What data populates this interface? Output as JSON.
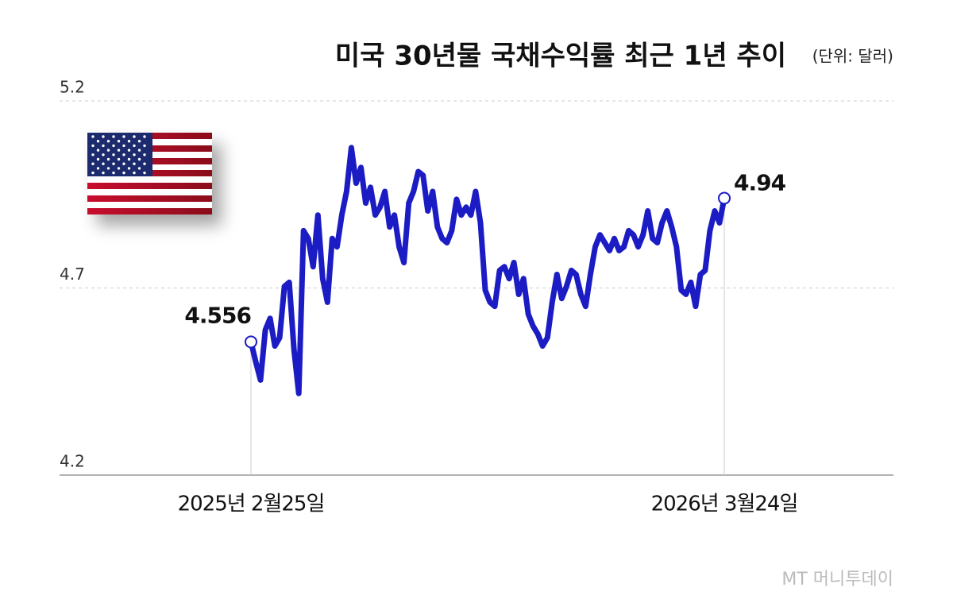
{
  "chart_data": {
    "type": "line",
    "title": "미국 30년물 국채수익률 최근 1년 추이",
    "subtitle": "(단위: 달러)",
    "source": "MT 머니투데이",
    "categories": [
      "2025년 2월25일",
      null,
      null,
      null,
      null,
      null,
      null,
      null,
      null,
      null,
      null,
      null,
      null,
      null,
      null,
      null,
      null,
      null,
      null,
      null,
      null,
      null,
      null,
      null,
      null,
      null,
      null,
      null,
      null,
      null,
      null,
      null,
      null,
      null,
      null,
      null,
      null,
      null,
      null,
      null,
      null,
      null,
      null,
      null,
      null,
      null,
      null,
      null,
      null,
      null,
      null,
      null,
      null,
      null,
      null,
      null,
      null,
      null,
      null,
      null,
      null,
      null,
      null,
      null,
      null,
      null,
      null,
      null,
      null,
      null,
      null,
      null,
      null,
      null,
      null,
      null,
      null,
      null,
      null,
      null,
      null,
      null,
      null,
      null,
      null,
      null,
      null,
      null,
      null,
      null,
      null,
      null,
      null,
      null,
      null,
      null,
      null,
      null,
      null,
      "2026년 3월24일"
    ],
    "series": [
      {
        "name": "미국 30년물 국채수익률",
        "color": "#1c1cc4",
        "values": [
          4.556,
          4.503,
          4.454,
          4.588,
          4.619,
          4.545,
          4.567,
          4.704,
          4.715,
          4.535,
          4.418,
          4.853,
          4.832,
          4.757,
          4.895,
          4.725,
          4.662,
          4.832,
          4.81,
          4.895,
          4.958,
          5.075,
          4.98,
          5.022,
          4.927,
          4.969,
          4.895,
          4.916,
          4.958,
          4.863,
          4.895,
          4.81,
          4.768,
          4.927,
          4.958,
          5.011,
          5.001,
          4.906,
          4.958,
          4.863,
          4.832,
          4.821,
          4.853,
          4.937,
          4.895,
          4.916,
          4.895,
          4.958,
          4.874,
          4.694,
          4.662,
          4.651,
          4.747,
          4.757,
          4.725,
          4.768,
          4.683,
          4.725,
          4.63,
          4.598,
          4.577,
          4.545,
          4.567,
          4.662,
          4.736,
          4.672,
          4.704,
          4.747,
          4.736,
          4.683,
          4.651,
          4.736,
          4.81,
          4.842,
          4.821,
          4.8,
          4.832,
          4.8,
          4.81,
          4.853,
          4.842,
          4.81,
          4.842,
          4.906,
          4.832,
          4.821,
          4.874,
          4.906,
          4.863,
          4.81,
          4.694,
          4.683,
          4.715,
          4.651,
          4.736,
          4.747,
          4.853,
          4.906,
          4.874,
          4.94
        ]
      }
    ],
    "ylim": [
      4.2,
      5.2
    ],
    "yticks": [
      4.2,
      4.7,
      5.2
    ],
    "grid": true
  }
}
